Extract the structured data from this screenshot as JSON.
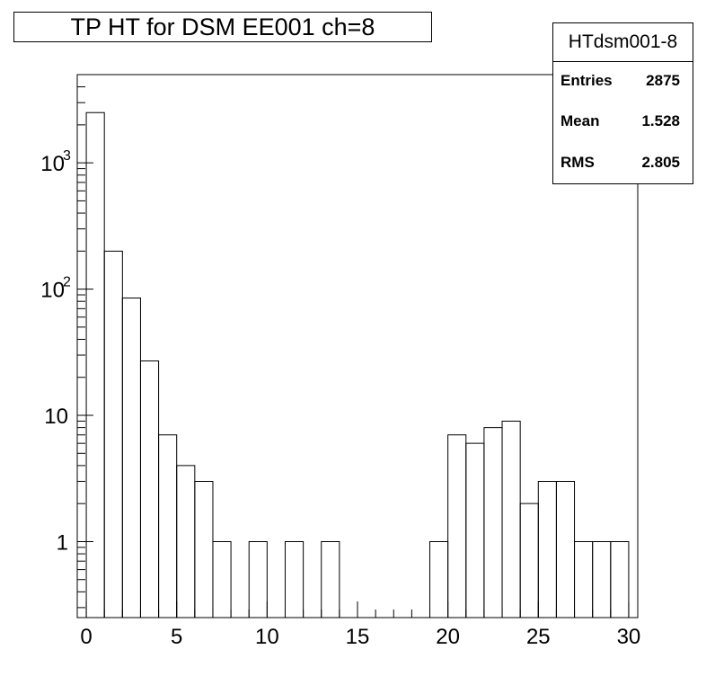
{
  "title": "TP HT for DSM EE001 ch=8",
  "stats": {
    "name": "HTdsm001-8",
    "rows": [
      {
        "label": "Entries",
        "value": "2875"
      },
      {
        "label": "Mean",
        "value": "1.528"
      },
      {
        "label": "RMS",
        "value": "2.805"
      }
    ]
  },
  "chart_data": {
    "type": "bar",
    "histogram": true,
    "title": "TP HT for DSM EE001 ch=8",
    "xlabel": "",
    "ylabel": "",
    "xlim": [
      -0.5,
      30.5
    ],
    "ylim": [
      0.25,
      5000
    ],
    "yscale": "log",
    "bin_width": 1,
    "bin_low_edges": [
      0,
      1,
      2,
      3,
      4,
      5,
      6,
      7,
      8,
      9,
      10,
      11,
      12,
      13,
      14,
      15,
      16,
      17,
      18,
      19,
      20,
      21,
      22,
      23,
      24,
      25,
      26,
      27,
      28,
      29
    ],
    "values": [
      2500,
      200,
      85,
      27,
      7,
      4,
      3,
      1,
      0,
      1,
      0,
      1,
      0,
      1,
      0,
      0,
      0,
      0,
      0,
      1,
      7,
      6,
      8,
      9,
      2,
      3,
      3,
      1,
      1,
      1
    ],
    "x_ticks": [
      "0",
      "5",
      "10",
      "15",
      "20",
      "25",
      "30"
    ],
    "y_ticks": [
      "1",
      "10",
      "10^2",
      "10^3"
    ],
    "color": "#000000",
    "grid": false
  }
}
